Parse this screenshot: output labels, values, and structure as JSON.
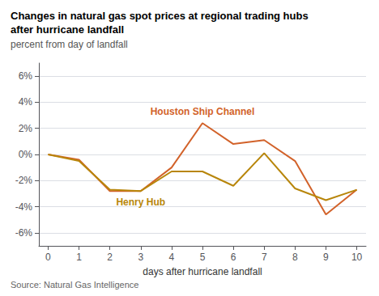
{
  "chart_data": {
    "type": "line",
    "title": "Changes in natural gas spot prices at regional trading hubs\nafter hurricane landfall",
    "subtitle": "percent from day of landfall",
    "xlabel": "days after hurricane landfall",
    "source": "Source: Natural Gas Intelligence",
    "x": [
      0,
      1,
      2,
      3,
      4,
      5,
      6,
      7,
      8,
      9,
      10
    ],
    "series": [
      {
        "name": "Houston Ship Channel",
        "color": "#D2622A",
        "values": [
          0.0,
          -0.4,
          -2.8,
          -2.8,
          -1.0,
          2.4,
          0.8,
          1.1,
          -0.5,
          -4.6,
          -2.7
        ]
      },
      {
        "name": "Henry Hub",
        "color": "#B8860B",
        "values": [
          0.0,
          -0.5,
          -2.7,
          -2.8,
          -1.3,
          -1.3,
          -2.4,
          0.1,
          -2.6,
          -3.5,
          -2.7
        ]
      }
    ],
    "xlim": [
      -0.3,
      10.3
    ],
    "xticks": [
      0,
      1,
      2,
      3,
      4,
      5,
      6,
      7,
      8,
      9,
      10
    ],
    "ylim": [
      -7,
      7
    ],
    "yticks": [
      {
        "value": -6,
        "label": "-6%"
      },
      {
        "value": -4,
        "label": "-4%"
      },
      {
        "value": -2,
        "label": "-2%"
      },
      {
        "value": 0,
        "label": "0%"
      },
      {
        "value": 2,
        "label": "2%"
      },
      {
        "value": 4,
        "label": "4%"
      },
      {
        "value": 6,
        "label": "6%"
      }
    ],
    "grid": true
  }
}
